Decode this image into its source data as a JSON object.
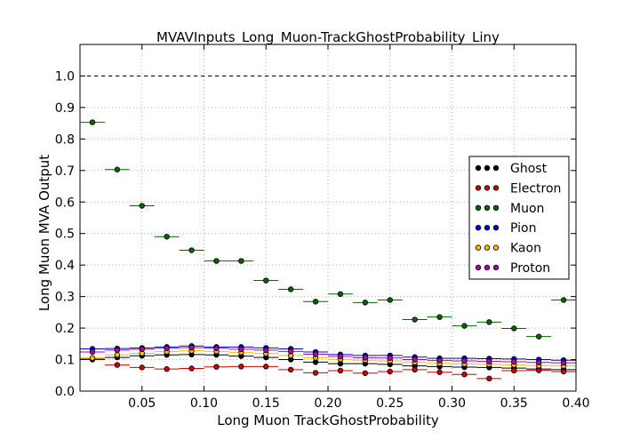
{
  "chart_data": {
    "type": "scatter",
    "title": "MVAVInputs_Long_Muon-TrackGhostProbability_Liny",
    "xlabel": "Long Muon TrackGhostProbability",
    "ylabel": "Long Muon MVA Output",
    "xlim": [
      0.0,
      0.4
    ],
    "ylim": [
      0.0,
      1.1
    ],
    "xticks": [
      0.05,
      0.1,
      0.15,
      0.2,
      0.25,
      0.3,
      0.35,
      0.4
    ],
    "xtick_labels": [
      "0.05",
      "0.10",
      "0.15",
      "0.20",
      "0.25",
      "0.30",
      "0.35",
      "0.40"
    ],
    "yticks": [
      0.0,
      0.1,
      0.2,
      0.3,
      0.4,
      0.5,
      0.6,
      0.7,
      0.8,
      0.9,
      1.0
    ],
    "ytick_labels": [
      "0.0",
      "0.1",
      "0.2",
      "0.3",
      "0.4",
      "0.5",
      "0.6",
      "0.7",
      "0.8",
      "0.9",
      "1.0"
    ],
    "grid": true,
    "reference_line": 1.0,
    "legend_position": "right",
    "bin_half_width": 0.01,
    "x": [
      0.01,
      0.03,
      0.05,
      0.07,
      0.09,
      0.11,
      0.13,
      0.15,
      0.17,
      0.19,
      0.21,
      0.23,
      0.25,
      0.27,
      0.29,
      0.31,
      0.33,
      0.35,
      0.37,
      0.39
    ],
    "series": [
      {
        "name": "Ghost",
        "color": "#000000",
        "values": [
          0.1,
          0.107,
          0.112,
          0.115,
          0.116,
          0.115,
          0.111,
          0.107,
          0.1,
          0.092,
          0.087,
          0.087,
          0.085,
          0.08,
          0.078,
          0.076,
          0.075,
          0.073,
          0.07,
          0.068
        ]
      },
      {
        "name": "Electron",
        "color": "#cc0000",
        "values": [
          0.102,
          0.083,
          0.075,
          0.07,
          0.072,
          0.077,
          0.078,
          0.078,
          0.068,
          0.058,
          0.065,
          0.057,
          0.062,
          0.068,
          0.06,
          0.053,
          0.04,
          0.065,
          0.066,
          0.062
        ]
      },
      {
        "name": "Muon",
        "color": "#006600",
        "values": [
          0.853,
          0.703,
          0.588,
          0.49,
          0.447,
          0.413,
          0.413,
          0.351,
          0.323,
          0.284,
          0.308,
          0.281,
          0.289,
          0.227,
          0.235,
          0.207,
          0.219,
          0.199,
          0.173,
          0.289
        ]
      },
      {
        "name": "Pion",
        "color": "#0000cc",
        "values": [
          0.134,
          0.135,
          0.137,
          0.14,
          0.143,
          0.14,
          0.14,
          0.137,
          0.134,
          0.124,
          0.116,
          0.113,
          0.113,
          0.108,
          0.104,
          0.104,
          0.103,
          0.102,
          0.1,
          0.098
        ]
      },
      {
        "name": "Kaon",
        "color": "#ffbb00",
        "values": [
          0.105,
          0.115,
          0.12,
          0.125,
          0.128,
          0.126,
          0.123,
          0.119,
          0.113,
          0.106,
          0.101,
          0.098,
          0.096,
          0.091,
          0.088,
          0.086,
          0.085,
          0.083,
          0.081,
          0.08
        ]
      },
      {
        "name": "Proton",
        "color": "#aa00aa",
        "values": [
          0.124,
          0.13,
          0.133,
          0.136,
          0.138,
          0.136,
          0.133,
          0.13,
          0.126,
          0.117,
          0.11,
          0.106,
          0.105,
          0.1,
          0.097,
          0.096,
          0.094,
          0.093,
          0.091,
          0.09
        ]
      }
    ]
  }
}
